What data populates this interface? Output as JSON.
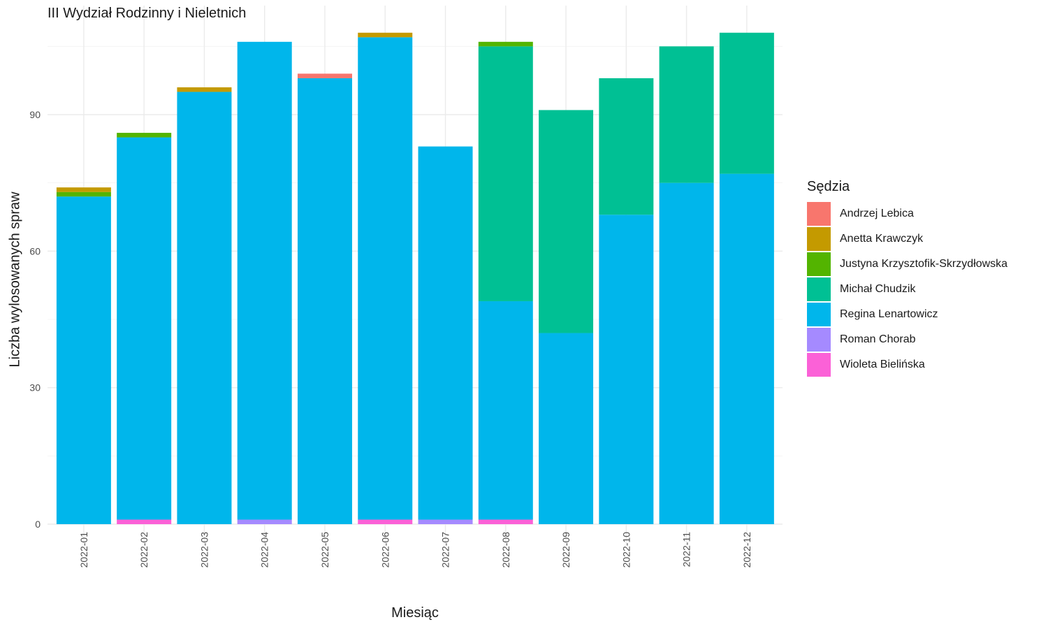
{
  "chart_data": {
    "type": "bar",
    "stacked": true,
    "title": "III Wydział Rodzinny i Nieletnich",
    "xlabel": "Miesiąc",
    "ylabel": "Liczba wylosowanych spraw",
    "ylim": [
      0,
      110
    ],
    "yticks": [
      "0",
      "30",
      "60",
      "90"
    ],
    "grid": true,
    "legend_position": "right",
    "legend_title": "Sędzia",
    "categories": [
      "2022-01",
      "2022-02",
      "2022-03",
      "2022-04",
      "2022-05",
      "2022-06",
      "2022-07",
      "2022-08",
      "2022-09",
      "2022-10",
      "2022-11",
      "2022-12"
    ],
    "series": [
      {
        "name": "Andrzej Lebica",
        "color": "#F8766D",
        "values": [
          0,
          0,
          0,
          0,
          1,
          0,
          0,
          0,
          0,
          0,
          0,
          0
        ]
      },
      {
        "name": "Anetta Krawczyk",
        "color": "#C49A00",
        "values": [
          1,
          0,
          1,
          0,
          0,
          1,
          0,
          0,
          0,
          0,
          0,
          0
        ]
      },
      {
        "name": "Justyna Krzysztofik-Skrzydłowska",
        "color": "#53B400",
        "values": [
          1,
          1,
          0,
          0,
          0,
          0,
          0,
          1,
          0,
          0,
          0,
          0
        ]
      },
      {
        "name": "Michał Chudzik",
        "color": "#00C094",
        "values": [
          0,
          0,
          0,
          0,
          0,
          0,
          0,
          56,
          49,
          30,
          30,
          31
        ]
      },
      {
        "name": "Regina Lenartowicz",
        "color": "#00B6EB",
        "values": [
          72,
          84,
          95,
          105,
          98,
          106,
          82,
          48,
          42,
          68,
          75,
          77
        ]
      },
      {
        "name": "Roman Chorab",
        "color": "#A58AFF",
        "values": [
          0,
          0,
          0,
          1,
          0,
          0,
          1,
          0,
          0,
          0,
          0,
          0
        ]
      },
      {
        "name": "Wioleta Bielińska",
        "color": "#FB61D7",
        "values": [
          0,
          1,
          0,
          0,
          0,
          1,
          0,
          1,
          0,
          0,
          0,
          0
        ]
      }
    ]
  }
}
